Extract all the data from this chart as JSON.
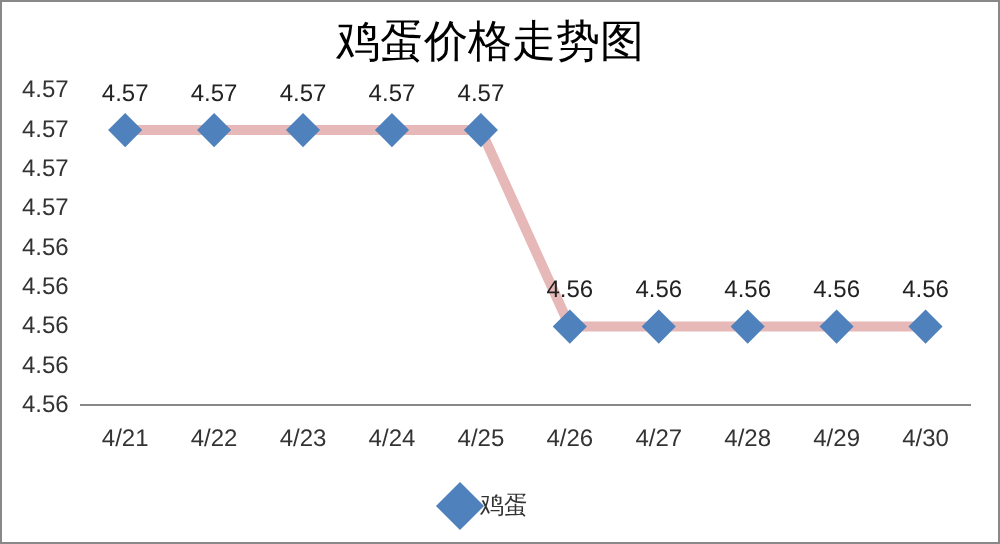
{
  "chart_data": {
    "type": "line",
    "title": "鸡蛋价格走势图",
    "categories": [
      "4/21",
      "4/22",
      "4/23",
      "4/24",
      "4/25",
      "4/26",
      "4/27",
      "4/28",
      "4/29",
      "4/30"
    ],
    "series": [
      {
        "name": "鸡蛋",
        "color": "#e6b9b8",
        "colors": [
          "#4f81bd",
          "#4f81bd",
          "#4f81bd",
          "#4f81bd",
          "#4f81bd",
          "#4f81bd",
          "#4f81bd",
          "#4f81bd",
          "#4f81bd",
          "#4f81bd"
        ],
        "values": [
          4.57,
          4.57,
          4.57,
          4.57,
          4.57,
          4.56,
          4.56,
          4.56,
          4.56,
          4.56
        ]
      }
    ],
    "ylim": [
      4.556,
      4.572
    ],
    "yticks": [
      {
        "value": 4.556,
        "label": "4.56"
      },
      {
        "value": 4.558,
        "label": "4.56"
      },
      {
        "value": 4.56,
        "label": "4.56"
      },
      {
        "value": 4.562,
        "label": "4.56"
      },
      {
        "value": 4.564,
        "label": "4.56"
      },
      {
        "value": 4.566,
        "label": "4.57"
      },
      {
        "value": 4.568,
        "label": "4.57"
      },
      {
        "value": 4.57,
        "label": "4.57"
      },
      {
        "value": 4.572,
        "label": "4.57"
      }
    ],
    "marker": "diamond",
    "data_labels": true,
    "legend": "bottom",
    "grid": false
  }
}
